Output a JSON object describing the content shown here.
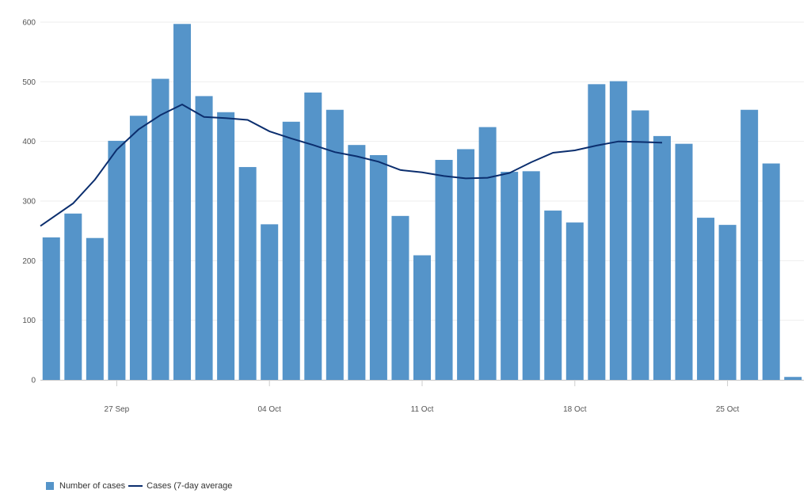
{
  "chart_data": {
    "type": "bar",
    "x": [
      "24 Sep",
      "25 Sep",
      "26 Sep",
      "27 Sep",
      "28 Sep",
      "29 Sep",
      "30 Sep",
      "01 Oct",
      "02 Oct",
      "03 Oct",
      "04 Oct",
      "05 Oct",
      "06 Oct",
      "07 Oct",
      "08 Oct",
      "09 Oct",
      "10 Oct",
      "11 Oct",
      "12 Oct",
      "13 Oct",
      "14 Oct",
      "15 Oct",
      "16 Oct",
      "17 Oct",
      "18 Oct",
      "19 Oct",
      "20 Oct",
      "21 Oct",
      "22 Oct",
      "23 Oct",
      "24 Oct",
      "25 Oct",
      "26 Oct",
      "27 Oct",
      "28 Oct"
    ],
    "x_tick_labels": [
      "27 Sep",
      "04 Oct",
      "11 Oct",
      "18 Oct",
      "25 Oct"
    ],
    "ylim": [
      0,
      600
    ],
    "y_ticks": [
      0,
      100,
      200,
      300,
      400,
      500,
      600
    ],
    "grid": true,
    "legend_position": "bottom-left",
    "series": [
      {
        "name": "Number of cases",
        "type": "bar",
        "color": "#5594c9",
        "values": [
          239,
          279,
          238,
          401,
          443,
          505,
          597,
          476,
          449,
          357,
          261,
          433,
          482,
          453,
          394,
          377,
          275,
          209,
          369,
          387,
          424,
          349,
          350,
          284,
          264,
          496,
          501,
          452,
          409,
          396,
          272,
          260,
          453,
          363,
          5
        ]
      },
      {
        "name": "Cases (7-day average",
        "type": "line",
        "color": "#0b2e6e",
        "values": [
          258,
          296,
          336,
          386,
          420,
          444,
          462,
          441,
          439,
          436,
          417,
          405,
          394,
          382,
          375,
          366,
          352,
          348,
          342,
          338,
          339,
          347,
          365,
          381,
          385,
          393,
          400,
          399,
          398,
          null,
          null,
          null,
          null,
          null,
          null
        ]
      }
    ]
  },
  "legend": {
    "bars_label": "Number of cases",
    "line_label": "Cases (7-day average"
  }
}
